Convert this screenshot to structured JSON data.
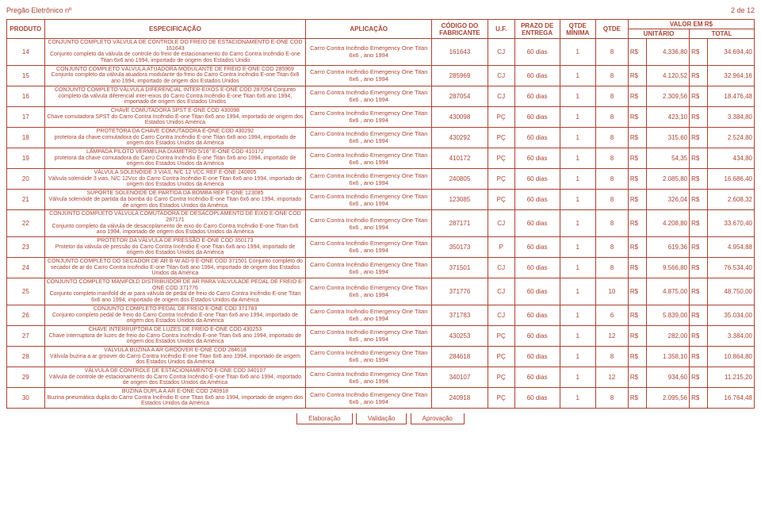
{
  "page": {
    "doc_title": "Pregão Eletrônico nº",
    "page_num": "2 de 12"
  },
  "table": {
    "headers": {
      "produto": "PRODUTO",
      "espec": "ESPECIFICAÇÃO",
      "aplic": "APLICAÇÃO",
      "codigo": "CÓDIGO DO FABRICANTE",
      "uf": "U.F.",
      "prazo": "PRAZO DE ENTREGA",
      "qmin": "QTDE MÍNIMA",
      "qtde": "QTDE",
      "valor": "VALOR EM R$",
      "unit": "UNITÁRIO",
      "total": "TOTAL"
    },
    "aplic_common": "Carro Contra Incêndio Emergency One Titan 6x6 , ano 1994",
    "rows": [
      {
        "n": "14",
        "spec": "CONJUNTO COMPLETO VÁLVULA DE CONTROLE DO FREIO DE ESTACIONAMENTO E-ONE COD 161643\nConjunto completo da válvula de  controle do freio de estacionamento do Carro Contra Incêndio E-one Titan 6x6 ano 1994, importado de origem dos Estados Unido",
        "cod": "161643",
        "uf": "CJ",
        "prazo": "60 dias",
        "qmin": "1",
        "qtde": "8",
        "unit": "4.336,80",
        "total": "34.694,40"
      },
      {
        "n": "15",
        "spec": "CONJUNTO COMPLETO VÁLVULA ATUADORA MODULANTE DE FREIO E-ONE COD 285969                                         Conjunto completo da válvula atuadora modulante do freio do Carro Contra Incêndio E-one Titan 6x6 ano 1994, importado de origem dos Estados Unidos",
        "cod": "285969",
        "uf": "CJ",
        "prazo": "60 dias",
        "qmin": "1",
        "qtde": "8",
        "unit": "4.120,52",
        "total": "32.964,16"
      },
      {
        "n": "16",
        "spec": "CONJUNTO COMPLETO VÁLVULA DIFERENCIAL INTER-EIXOS E-ONE COD 287054                                        Conjunto completo da válvula diferencial inter-eixos do Carro Contra Incêndio E-one Titan 6x6 ano 1994, importado de origem dos Estados Unidos",
        "cod": "287054",
        "uf": "CJ",
        "prazo": "60 dias",
        "qmin": "1",
        "qtde": "8",
        "unit": "2.309,56",
        "total": "18.476,48"
      },
      {
        "n": "17",
        "spec": "CHAVE COMUTADORA SPST E-ONE COD 430098\nChave comutadora SPST do Carro Contra Incêndio E-one Titan 6x6 ano 1994, importado de origem dos Estados Unidos América",
        "cod": "430098",
        "uf": "PÇ",
        "prazo": "60 dias",
        "qmin": "1",
        "qtde": "8",
        "unit": "423,10",
        "total": "3.384,80"
      },
      {
        "n": "18",
        "spec": "PROTETORA DA CHAVE COMUTADORA E-ONE COD 430292\nprotetora da chave comutadora  do Carro Contra Incêndio E-one Titan 6x6 ano 1994, importado de origem dos Estados Unidos da América",
        "cod": "430292",
        "uf": "PÇ",
        "prazo": "60 dias",
        "qmin": "1",
        "qtde": "8",
        "unit": "315,60",
        "total": "2.524,80"
      },
      {
        "n": "19",
        "spec": "LÂMPADA PILOTO VERMELHA DIAMETRO 5/16\" E-ONE COD 410172\nprotetora da chave comutadora  do Carro Contra Incêndio E-one Titan 6x6 ano 1994, importado de origem dos Estados Unidos da América",
        "cod": "410172",
        "uf": "PÇ",
        "prazo": "60 dias",
        "qmin": "1",
        "qtde": "8",
        "unit": "54,35",
        "total": "434,80"
      },
      {
        "n": "20",
        "spec": "VÁLVULA SOLENÓIDE 3 VIAS, N/C 12 VCC REF E-ONE 240805\nVálvula solenóide 3 vias, N/C 12Vcc do Carro Contra Incêndio E-one Titan 6x6 ano 1994, importado de origem dos Estados Unidos da América",
        "cod": "240805",
        "uf": "PÇ",
        "prazo": "60 dias",
        "qmin": "1",
        "qtde": "8",
        "unit": "2.085,80",
        "total": "16.686,40"
      },
      {
        "n": "21",
        "spec": "SUPORTE SOLENÓIDE DE PARTIDA DA BOMBA REF E-ONE 123085\nVálvula solenóide de partida da bomba do Carro Contra Incêndio E-one Titan 6x6 ano 1994, importado de origem dos Estados Unidos da América",
        "cod": "123085",
        "uf": "PÇ",
        "prazo": "60 dias",
        "qmin": "1",
        "qtde": "8",
        "unit": "326,04",
        "total": "2.608,32"
      },
      {
        "n": "22",
        "spec": "CONJUNTO COMPLETO VÁLVULA COMUTADORA DE DESACOPLAMENTO DE EIXO E-ONE COD 287171\nConjunto completo da válvula de desacoplamento de eixo do Carro Contra Incêndio E-one Titan 6x6 ano 1994, importado de origem dos Estados Unidos da América",
        "cod": "287171",
        "uf": "CJ",
        "prazo": "60 dias",
        "qmin": "1",
        "qtde": "8",
        "unit": "4.208,80",
        "total": "33.670,40"
      },
      {
        "n": "23",
        "spec": "PROTETOR DA VÁLVULA DE PRESSÃO E-ONE COD 350173\nProtetor da válvula de pressão do Carro Contra Incêndio E-one Titan 6x6 ano 1994, importado de origem dos Estados Unidos da América",
        "cod": "350173",
        "uf": "P",
        "prazo": "60 dias",
        "qmin": "1",
        "qtde": "8",
        "unit": "619,36",
        "total": "4.954,88"
      },
      {
        "n": "24",
        "spec": "CONJUNTO COMPLETO DO SECADOR DE AR B-W AD-9 E-ONE COD 371501                                   Conjunto completo do secador de ar do Carro Contra Incêndio E-one Titan 6x6 ano 1994, importado de origem dos Estados Unidos da América",
        "cod": "371501",
        "uf": "CJ",
        "prazo": "60 dias",
        "qmin": "1",
        "qtde": "8",
        "unit": "9.566,80",
        "total": "76.534,40"
      },
      {
        "n": "25",
        "spec": "CONJUNTO COMPLETO MANIFOLD DISTRIBUIDOR DE AR PARA VÁLVULADE PEDAL DE FREIO E-ONE COD 371776\nConjunto completo manifold de ar para válvula de pedal de freio do Carro Contra Incêndio E-one Titan 6x6 ano 1994, importado de origem dos Estados Unidos da América",
        "cod": "371776",
        "uf": "CJ",
        "prazo": "60 dias",
        "qmin": "1",
        "qtde": "10",
        "unit": "4.875,00",
        "total": "48.750,00"
      },
      {
        "n": "26",
        "spec": "CONJUNTO COMPLETO PEDAL DE FREIO E-ONE COD 371783\nConjunto completo pedal de freio do Carro Contra Incêndio E-one Titan 6x6 ano 1994, importado de origem dos Estados Unidos da América",
        "cod": "371783",
        "uf": "CJ",
        "prazo": "60 dias",
        "qmin": "1",
        "qtde": "6",
        "unit": "5.839,00",
        "total": "35.034,00"
      },
      {
        "n": "27",
        "spec": "CHAVE INTERRUPTORA DE LUZES DE FREIO E-ONE COD 430253\nChave interruptora de luzes de freio do Carro Contra Incêndio E-one Titan 6x6 ano 1994, importado de origem dos Estados Unidos da América",
        "cod": "430253",
        "uf": "PÇ",
        "prazo": "60 dias",
        "qmin": "1",
        "qtde": "12",
        "unit": "282,00",
        "total": "3.384,00"
      },
      {
        "n": "28",
        "spec": "VÁLVULA BUZINA A AR GROOVER E-ONE COD 284618\nVálvula buzina a ar groover do Carro Contra Incêndio E-one Titan 6x6 ano 1994, importado de origem dos Estados Unidos da América",
        "cod": "284618",
        "uf": "PÇ",
        "prazo": "60 dias",
        "qmin": "1",
        "qtde": "8",
        "unit": "1.358,10",
        "total": "10.864,80"
      },
      {
        "n": "29",
        "spec": "VÁLVULA DE CONTROLE DE ESTACIONAMENTO E-ONE COD 340107\nVálvula de controle de estacionamento do Carro Contra Incêndio E-one Titan 6x6 ano 1994, importado de origem dos Estados Unidos da América",
        "cod": "340107",
        "uf": "PÇ",
        "prazo": "60 dias",
        "qmin": "1",
        "qtde": "12",
        "unit": "934,60",
        "total": "11.215,20"
      },
      {
        "n": "30",
        "spec": "BUZINA DUPLA A AR E-ONE COD 240918\nBuzina pneumática dupla do Carro Contra Incêndio E-one Titan 6x6 ano 1994, importado de origem dos Estados Unidos da América",
        "cod": "240918",
        "uf": "PÇ",
        "prazo": "60 dias",
        "qmin": "1",
        "qtde": "8",
        "unit": "2.095,56",
        "total": "16.764,48"
      }
    ]
  },
  "footer": {
    "elab": "Elaboração",
    "valid": "Validação",
    "aprov": "Aprovação"
  }
}
